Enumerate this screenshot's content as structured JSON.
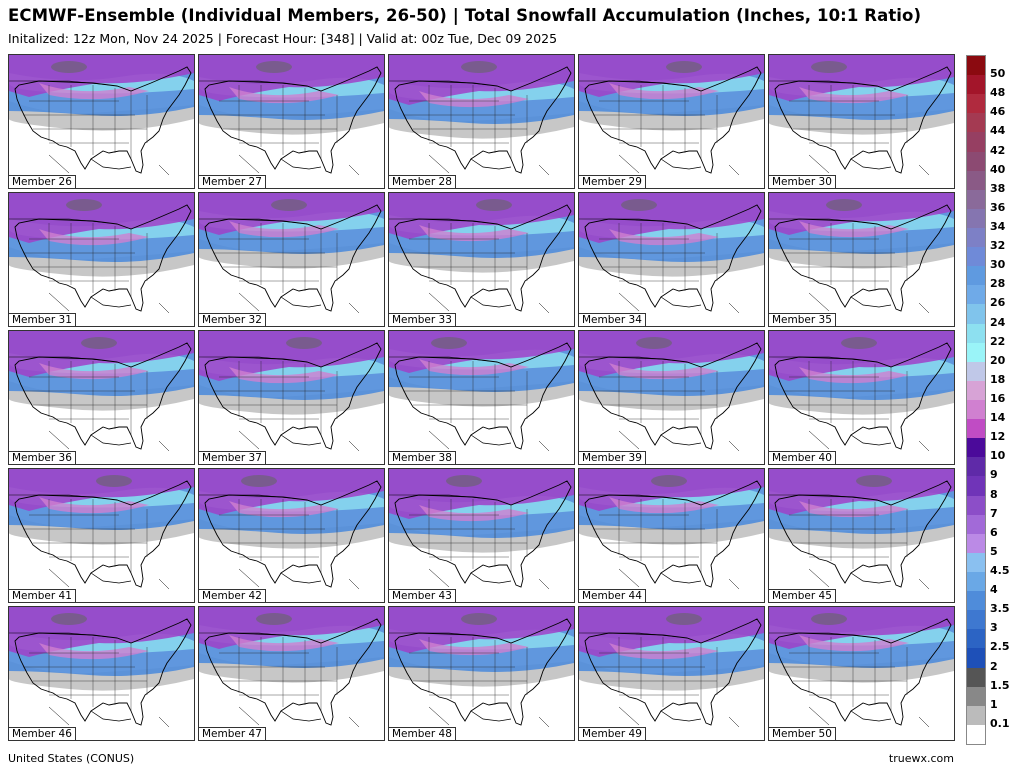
{
  "header": {
    "title": "ECMWF-Ensemble (Individual Members, 26-50) | Total Snowfall Accumulation (Inches, 10:1 Ratio)",
    "subtitle": "Initalized: 12z Mon, Nov 24 2025  |  Forecast Hour: [348]  |  Valid at: 00z Tue, Dec 09 2025"
  },
  "panels": [
    "Member 26",
    "Member 27",
    "Member 28",
    "Member 29",
    "Member 30",
    "Member 31",
    "Member 32",
    "Member 33",
    "Member 34",
    "Member 35",
    "Member 36",
    "Member 37",
    "Member 38",
    "Member 39",
    "Member 40",
    "Member 41",
    "Member 42",
    "Member 43",
    "Member 44",
    "Member 45",
    "Member 46",
    "Member 47",
    "Member 48",
    "Member 49",
    "Member 50"
  ],
  "legend": {
    "labels": [
      "50",
      "48",
      "46",
      "44",
      "42",
      "40",
      "38",
      "36",
      "34",
      "32",
      "30",
      "28",
      "26",
      "24",
      "22",
      "20",
      "18",
      "16",
      "14",
      "12",
      "10",
      "9",
      "8",
      "7",
      "6",
      "5",
      "4.5",
      "4",
      "3.5",
      "3",
      "2.5",
      "2",
      "1.5",
      "1",
      "0.1"
    ],
    "colors": [
      "#8b0a10",
      "#a3152a",
      "#b02a3e",
      "#a43a52",
      "#963f62",
      "#8c4a72",
      "#8a5a86",
      "#8a6a9a",
      "#8575b0",
      "#7d80c6",
      "#6f8ad8",
      "#5f9ae0",
      "#6faae8",
      "#80c4ec",
      "#8de0f0",
      "#9af4f8",
      "#c0c8e8",
      "#d7a3d6",
      "#d080d0",
      "#c04cc4",
      "#4b0a9a",
      "#5f2aa8",
      "#7034b8",
      "#8c4ec8",
      "#a26ad8",
      "#bb8ae6",
      "#8ac0f0",
      "#6aa8e6",
      "#4f8cda",
      "#3e78d0",
      "#2c64c4",
      "#1e50b8",
      "#555555",
      "#888888",
      "#bbbbbb",
      "#ffffff"
    ]
  },
  "footer": {
    "region": "United States (CONUS)",
    "credit": "truewx.com"
  }
}
